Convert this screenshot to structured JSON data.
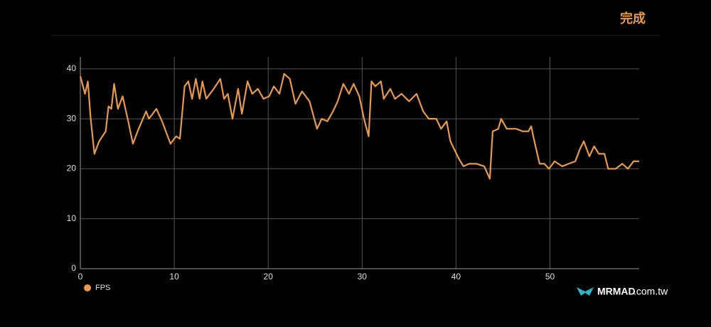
{
  "header": {
    "done": "完成"
  },
  "watermark": {
    "brand": "MRMAD",
    "domain": ".com.tw"
  },
  "chart_data": {
    "type": "line",
    "x": [
      0,
      0.5,
      0.8,
      1.1,
      1.5,
      2,
      2.7,
      3,
      3.3,
      3.6,
      4,
      4.5,
      5.1,
      5.6,
      6.1,
      7,
      7.3,
      8.1,
      8.7,
      9.6,
      10.2,
      10.6,
      11.1,
      11.5,
      11.9,
      12.3,
      12.7,
      13,
      13.4,
      14.2,
      14.9,
      15.3,
      15.7,
      16.2,
      16.8,
      17.2,
      17.8,
      18.3,
      18.9,
      19.5,
      20.1,
      20.6,
      21.2,
      21.7,
      22.3,
      22.9,
      23.6,
      24.4,
      25.2,
      25.7,
      26.3,
      26.9,
      27.4,
      28,
      28.6,
      29.1,
      29.7,
      30.2,
      30.7,
      31,
      31.4,
      32,
      32.3,
      33,
      33.5,
      34.2,
      35,
      35.8,
      36.5,
      37.1,
      37.9,
      38.4,
      39,
      39.4,
      40.3,
      40.8,
      41.4,
      42.2,
      43,
      43.6,
      43.9,
      44.5,
      44.8,
      45.4,
      46.4,
      47.1,
      47.7,
      48,
      48.4,
      48.9,
      49.4,
      49.9,
      50.5,
      51.3,
      52,
      52.7,
      53.2,
      53.6,
      54.2,
      54.7,
      55.2,
      55.8,
      56.2,
      57,
      57.7,
      58.3,
      58.9,
      59.5
    ],
    "series": [
      {
        "name": "FPS",
        "color": "#e8994a",
        "values": [
          38.5,
          35,
          37.5,
          30,
          23,
          25.5,
          27.5,
          32.5,
          32,
          37,
          32,
          34.5,
          29.5,
          25,
          27.5,
          31.5,
          30,
          32,
          29.5,
          25,
          26.5,
          26,
          36.5,
          37.5,
          34,
          38,
          34,
          37.5,
          34,
          36,
          38,
          34,
          35,
          30,
          36,
          31,
          37.5,
          35,
          36,
          34,
          34.5,
          36.5,
          35,
          39,
          38,
          33,
          35.5,
          33.5,
          28,
          30,
          29.5,
          31.5,
          33.5,
          37,
          35,
          37,
          34.5,
          30,
          26.5,
          37.5,
          36.5,
          37.5,
          34,
          36,
          34,
          35,
          33.5,
          35,
          31.5,
          30,
          30,
          28,
          29.5,
          25.5,
          22,
          20.5,
          21,
          21,
          20.5,
          18,
          27.5,
          28,
          30,
          28,
          28,
          27.5,
          27.5,
          28.5,
          25,
          21,
          21,
          20,
          21.5,
          20.5,
          21,
          21.5,
          24,
          25.5,
          22.5,
          24.5,
          23,
          23,
          20,
          20,
          21,
          20,
          21.5,
          21.5
        ]
      }
    ],
    "xlim": [
      0,
      59.5
    ],
    "xticks": [
      0,
      10,
      20,
      30,
      40,
      50
    ],
    "ylim": [
      0,
      42.4
    ],
    "yticks": [
      0,
      10,
      20,
      30,
      40
    ],
    "grid": true
  }
}
